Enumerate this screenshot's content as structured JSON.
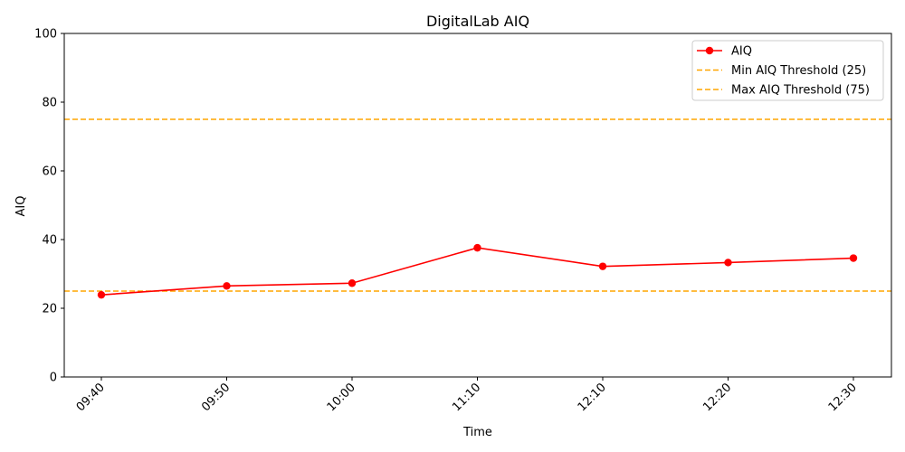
{
  "chart_data": {
    "type": "line",
    "title": "DigitalLab AIQ",
    "xlabel": "Time",
    "ylabel": "AIQ",
    "categories": [
      "09:40",
      "09:50",
      "10:00",
      "11:10",
      "12:10",
      "12:20",
      "12:30"
    ],
    "series": [
      {
        "name": "AIQ",
        "values": [
          23.9,
          26.5,
          27.3,
          37.6,
          32.2,
          33.3,
          34.6
        ],
        "color": "#ff0000"
      }
    ],
    "reference_lines": [
      {
        "name": "Min AIQ Threshold (25)",
        "value": 25,
        "color": "#ffa500",
        "style": "dashed"
      },
      {
        "name": "Max AIQ Threshold (75)",
        "value": 75,
        "color": "#ffa500",
        "style": "dashed"
      }
    ],
    "ylim": [
      0,
      100
    ],
    "yticks": [
      0,
      20,
      40,
      60,
      80,
      100
    ],
    "grid": false,
    "legend_position": "top-right"
  }
}
